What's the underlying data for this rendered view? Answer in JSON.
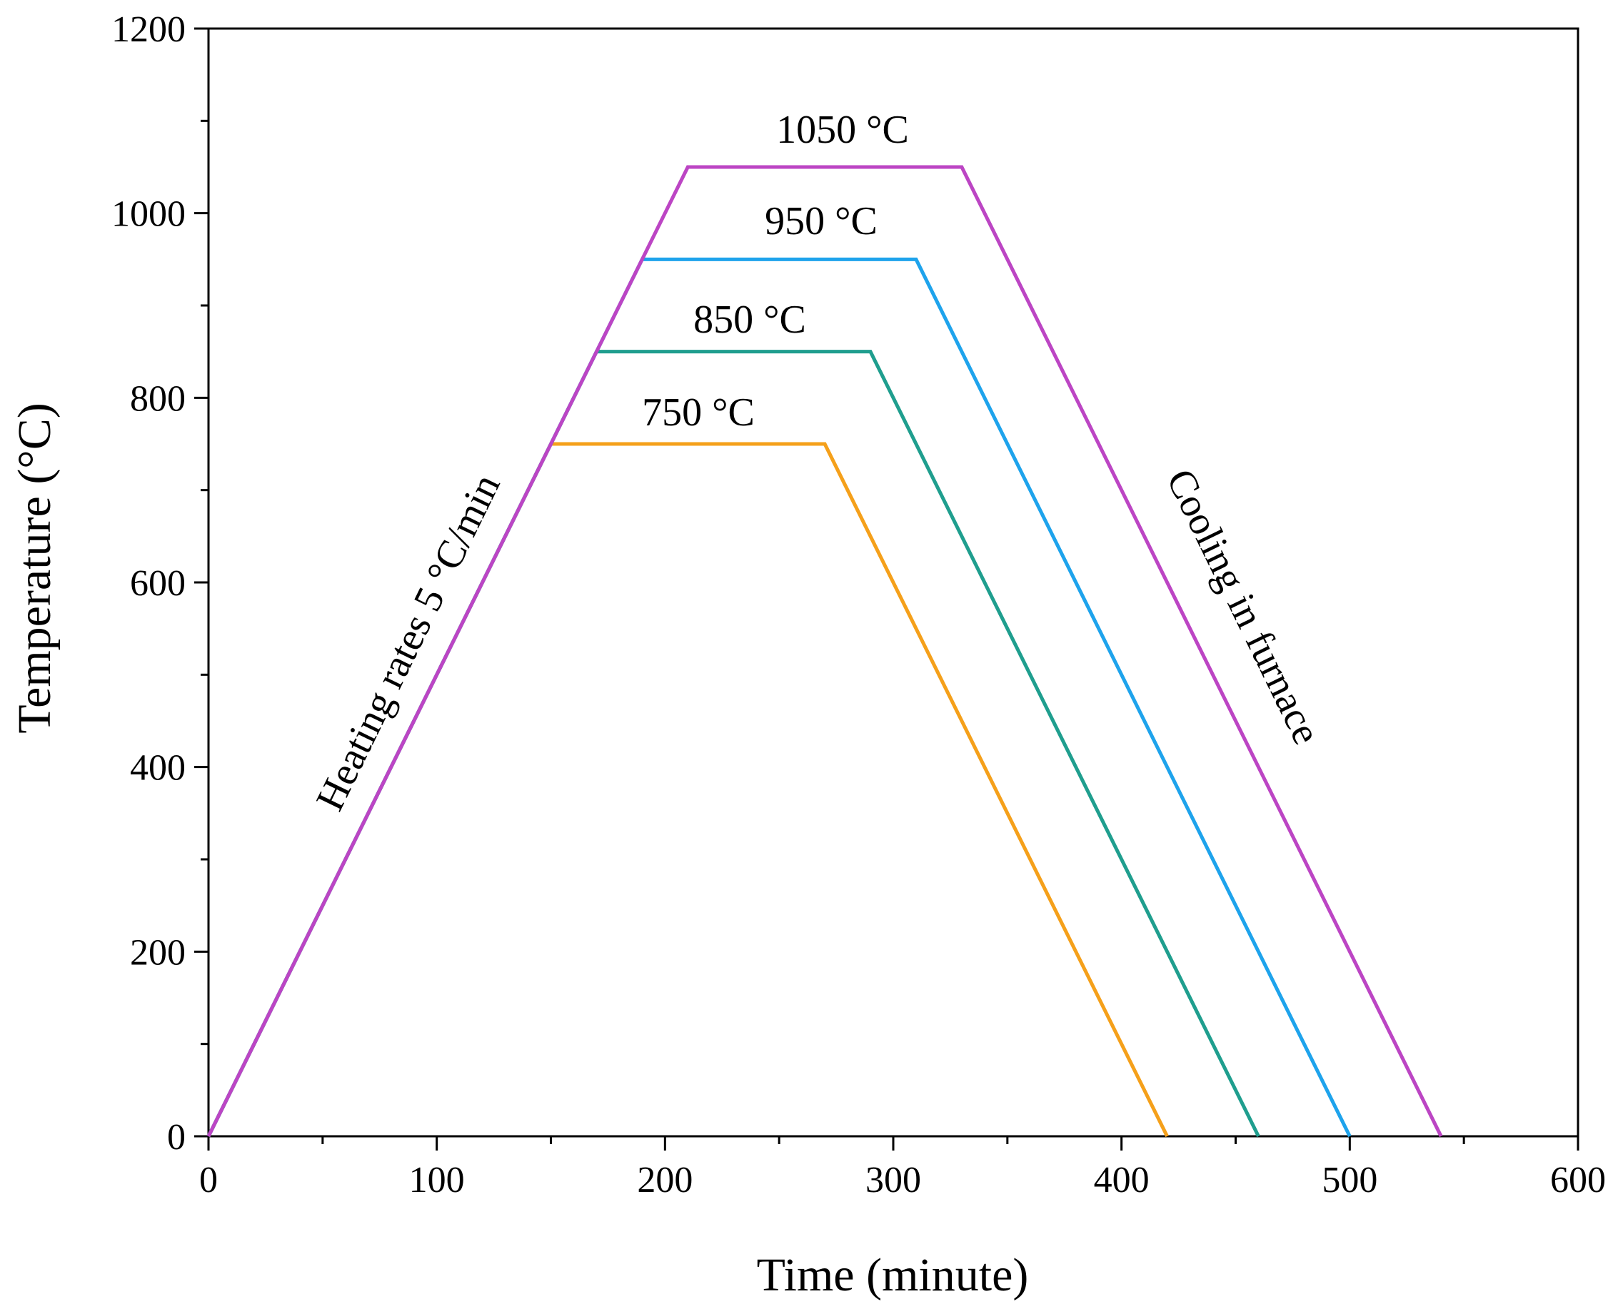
{
  "chart_data": {
    "type": "line",
    "xlabel": "Time (minute)",
    "ylabel": "Temperature (°C)",
    "xlim": [
      0,
      600
    ],
    "ylim": [
      0,
      1200
    ],
    "xticks": [
      "0",
      "100",
      "200",
      "300",
      "400",
      "500",
      "600"
    ],
    "yticks": [
      "0",
      "200",
      "400",
      "600",
      "800",
      "1000",
      "1200"
    ],
    "grid": false,
    "series": [
      {
        "name": "750 °C",
        "color": "#f5a01a",
        "x": [
          0,
          150,
          270,
          420
        ],
        "y": [
          0,
          750,
          750,
          0
        ]
      },
      {
        "name": "850 °C",
        "color": "#1f9e8e",
        "x": [
          0,
          170,
          290,
          460
        ],
        "y": [
          0,
          850,
          850,
          0
        ]
      },
      {
        "name": "950 °C",
        "color": "#1ea3ec",
        "x": [
          0,
          190,
          310,
          500
        ],
        "y": [
          0,
          950,
          950,
          0
        ]
      },
      {
        "name": "1050 °C",
        "color": "#bc45c4",
        "x": [
          0,
          210,
          330,
          540
        ],
        "y": [
          0,
          1050,
          1050,
          0
        ]
      }
    ],
    "annotations": {
      "heating": "Heating rates 5 °C/min",
      "cooling": "Cooling in furnace",
      "label_750": "750 °C",
      "label_850": "850 °C",
      "label_950": "950 °C",
      "label_1050": "1050 °C"
    }
  }
}
